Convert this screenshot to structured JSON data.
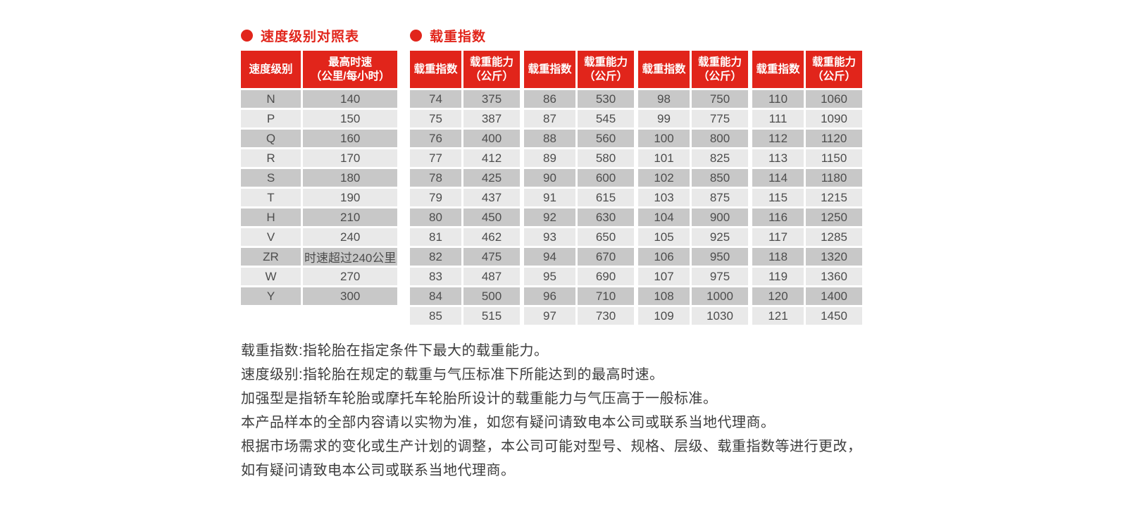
{
  "colors": {
    "accent_red": "#e1251b",
    "row_dark": "#c8c8c8",
    "row_light": "#e9e9e9",
    "cell_text": "#4d4d4d",
    "note_text": "#3d3d3d"
  },
  "speed_table": {
    "title": "速度级别对照表",
    "header_rating": "速度级别",
    "header_maxspeed": "最高时速\n（公里/每小时）",
    "rows": [
      [
        "N",
        "140"
      ],
      [
        "P",
        "150"
      ],
      [
        "Q",
        "160"
      ],
      [
        "R",
        "170"
      ],
      [
        "S",
        "180"
      ],
      [
        "T",
        "190"
      ],
      [
        "H",
        "210"
      ],
      [
        "V",
        "240"
      ],
      [
        "ZR",
        "时速超过240公里"
      ],
      [
        "W",
        "270"
      ],
      [
        "Y",
        "300"
      ]
    ]
  },
  "load_table": {
    "title": "载重指数",
    "header_index": "载重指数",
    "header_capacity": "载重能力\n（公斤）",
    "groups": [
      {
        "rows": [
          [
            "74",
            "375"
          ],
          [
            "75",
            "387"
          ],
          [
            "76",
            "400"
          ],
          [
            "77",
            "412"
          ],
          [
            "78",
            "425"
          ],
          [
            "79",
            "437"
          ],
          [
            "80",
            "450"
          ],
          [
            "81",
            "462"
          ],
          [
            "82",
            "475"
          ],
          [
            "83",
            "487"
          ],
          [
            "84",
            "500"
          ],
          [
            "85",
            "515"
          ]
        ]
      },
      {
        "rows": [
          [
            "86",
            "530"
          ],
          [
            "87",
            "545"
          ],
          [
            "88",
            "560"
          ],
          [
            "89",
            "580"
          ],
          [
            "90",
            "600"
          ],
          [
            "91",
            "615"
          ],
          [
            "92",
            "630"
          ],
          [
            "93",
            "650"
          ],
          [
            "94",
            "670"
          ],
          [
            "95",
            "690"
          ],
          [
            "96",
            "710"
          ],
          [
            "97",
            "730"
          ]
        ]
      },
      {
        "rows": [
          [
            "98",
            "750"
          ],
          [
            "99",
            "775"
          ],
          [
            "100",
            "800"
          ],
          [
            "101",
            "825"
          ],
          [
            "102",
            "850"
          ],
          [
            "103",
            "875"
          ],
          [
            "104",
            "900"
          ],
          [
            "105",
            "925"
          ],
          [
            "106",
            "950"
          ],
          [
            "107",
            "975"
          ],
          [
            "108",
            "1000"
          ],
          [
            "109",
            "1030"
          ]
        ]
      },
      {
        "rows": [
          [
            "110",
            "1060"
          ],
          [
            "111",
            "1090"
          ],
          [
            "112",
            "1120"
          ],
          [
            "113",
            "1150"
          ],
          [
            "114",
            "1180"
          ],
          [
            "115",
            "1215"
          ],
          [
            "116",
            "1250"
          ],
          [
            "117",
            "1285"
          ],
          [
            "118",
            "1320"
          ],
          [
            "119",
            "1360"
          ],
          [
            "120",
            "1400"
          ],
          [
            "121",
            "1450"
          ]
        ]
      }
    ]
  },
  "notes": [
    "载重指数:指轮胎在指定条件下最大的载重能力。",
    "速度级别:指轮胎在规定的载重与气压标准下所能达到的最高时速。",
    "加强型是指轿车轮胎或摩托车轮胎所设计的载重能力与气压高于一般标准。",
    "本产品样本的全部内容请以实物为准，如您有疑问请致电本公司或联系当地代理商。",
    "根据市场需求的变化或生产计划的调整，本公司可能对型号、规格、层级、载重指数等进行更改，",
    "如有疑问请致电本公司或联系当地代理商。"
  ]
}
